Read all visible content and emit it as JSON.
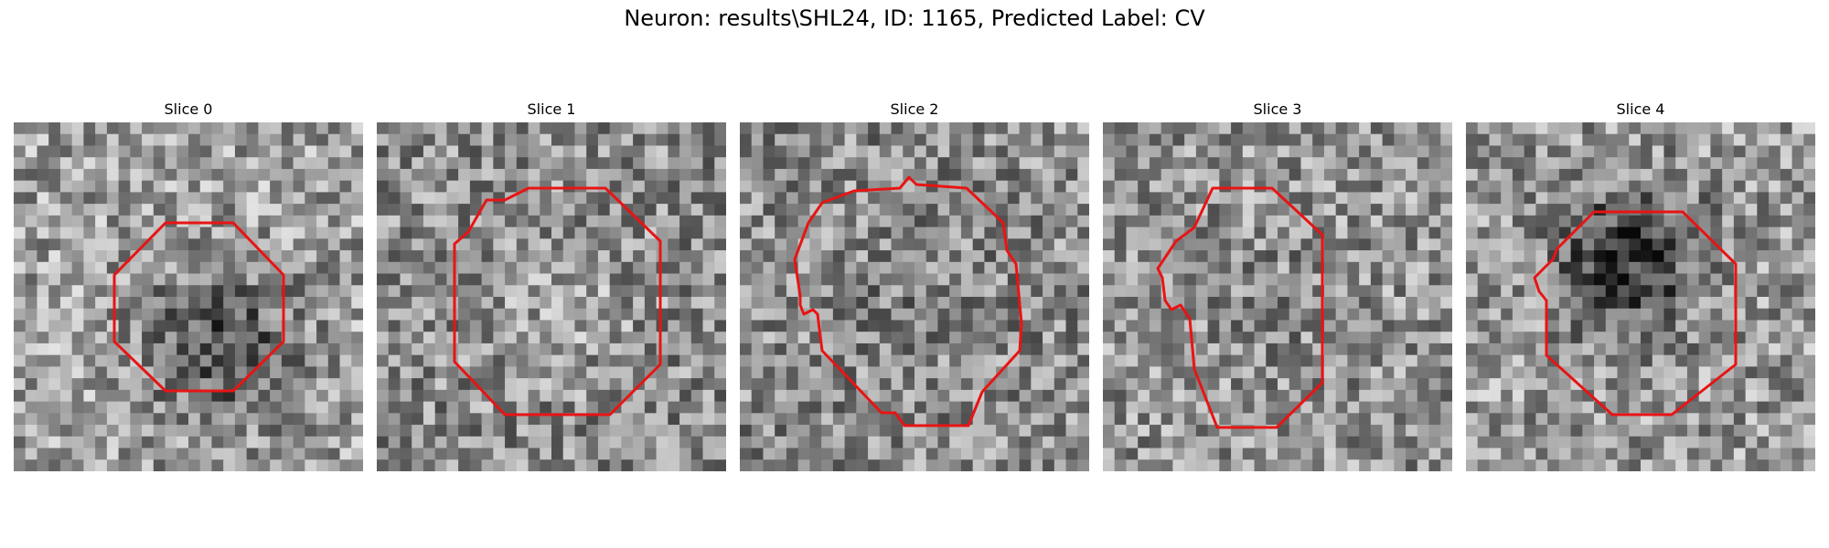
{
  "figure": {
    "title": "Neuron: results\\SHL24, ID: 1165, Predicted Label: CV"
  },
  "slices": [
    {
      "title": "Slice 0"
    },
    {
      "title": "Slice 1"
    },
    {
      "title": "Slice 2"
    },
    {
      "title": "Slice 3"
    },
    {
      "title": "Slice 4"
    }
  ],
  "colors": {
    "contour": "#e81414"
  }
}
